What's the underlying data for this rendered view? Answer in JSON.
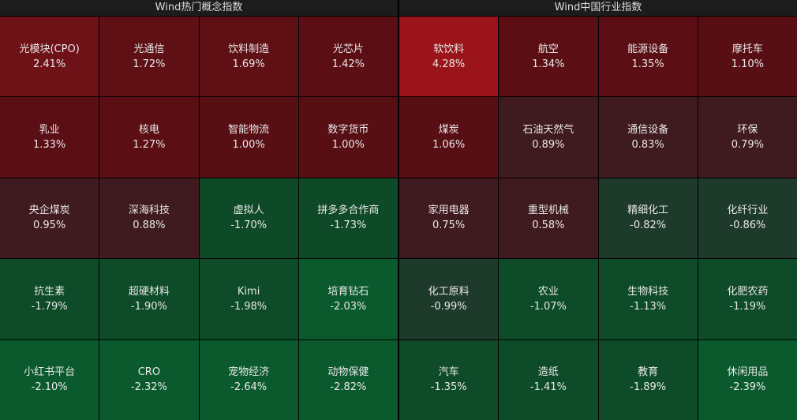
{
  "panels": [
    {
      "title": "Wind热门概念指数",
      "cells": [
        {
          "name": "光模块(CPO)",
          "change": "2.41%",
          "color": "#6e1218"
        },
        {
          "name": "光通信",
          "change": "1.72%",
          "color": "#5f1015"
        },
        {
          "name": "饮料制造",
          "change": "1.69%",
          "color": "#5f1015"
        },
        {
          "name": "光芯片",
          "change": "1.42%",
          "color": "#5b0f14"
        },
        {
          "name": "乳业",
          "change": "1.33%",
          "color": "#5b0f14"
        },
        {
          "name": "核电",
          "change": "1.27%",
          "color": "#5b0f14"
        },
        {
          "name": "智能物流",
          "change": "1.00%",
          "color": "#580f14"
        },
        {
          "name": "数字货币",
          "change": "1.00%",
          "color": "#580f14"
        },
        {
          "name": "央企煤炭",
          "change": "0.95%",
          "color": "#3f1a1f"
        },
        {
          "name": "深海科技",
          "change": "0.88%",
          "color": "#3f1a1f"
        },
        {
          "name": "虚拟人",
          "change": "-1.70%",
          "color": "#0f4a28"
        },
        {
          "name": "拼多多合作商",
          "change": "-1.73%",
          "color": "#0f4a28"
        },
        {
          "name": "抗生素",
          "change": "-1.79%",
          "color": "#0e4b28"
        },
        {
          "name": "超硬材料",
          "change": "-1.90%",
          "color": "#0e4b28"
        },
        {
          "name": "Kimi",
          "change": "-1.98%",
          "color": "#0e4b28"
        },
        {
          "name": "培育钻石",
          "change": "-2.03%",
          "color": "#0b5a2e"
        },
        {
          "name": "小红书平台",
          "change": "-2.10%",
          "color": "#0b5a2e"
        },
        {
          "name": "CRO",
          "change": "-2.32%",
          "color": "#0b5a2e"
        },
        {
          "name": "宠物经济",
          "change": "-2.64%",
          "color": "#0b5a2e"
        },
        {
          "name": "动物保健",
          "change": "-2.82%",
          "color": "#0b5a2e"
        }
      ]
    },
    {
      "title": "Wind中国行业指数",
      "cells": [
        {
          "name": "软饮料",
          "change": "4.28%",
          "color": "#9a1419"
        },
        {
          "name": "航空",
          "change": "1.34%",
          "color": "#5b0f14"
        },
        {
          "name": "能源设备",
          "change": "1.35%",
          "color": "#5b0f14"
        },
        {
          "name": "摩托车",
          "change": "1.10%",
          "color": "#580f14"
        },
        {
          "name": "煤炭",
          "change": "1.06%",
          "color": "#580f14"
        },
        {
          "name": "石油天然气",
          "change": "0.89%",
          "color": "#3f1a1f"
        },
        {
          "name": "通信设备",
          "change": "0.83%",
          "color": "#3f1a1f"
        },
        {
          "name": "环保",
          "change": "0.79%",
          "color": "#3f1a1f"
        },
        {
          "name": "家用电器",
          "change": "0.75%",
          "color": "#3f1a1f"
        },
        {
          "name": "重型机械",
          "change": "0.58%",
          "color": "#3f1a1f"
        },
        {
          "name": "精细化工",
          "change": "-0.82%",
          "color": "#1e3a2a"
        },
        {
          "name": "化纤行业",
          "change": "-0.86%",
          "color": "#1e3a2a"
        },
        {
          "name": "化工原料",
          "change": "-0.99%",
          "color": "#1e3a2a"
        },
        {
          "name": "农业",
          "change": "-1.07%",
          "color": "#0e4b28"
        },
        {
          "name": "生物科技",
          "change": "-1.13%",
          "color": "#0e4b28"
        },
        {
          "name": "化肥农药",
          "change": "-1.19%",
          "color": "#0e4b28"
        },
        {
          "name": "汽车",
          "change": "-1.35%",
          "color": "#0e4b28"
        },
        {
          "name": "造纸",
          "change": "-1.41%",
          "color": "#0e4b28"
        },
        {
          "name": "教育",
          "change": "-1.89%",
          "color": "#0e4b28"
        },
        {
          "name": "休闲用品",
          "change": "-2.39%",
          "color": "#0b5a2e"
        }
      ]
    }
  ]
}
